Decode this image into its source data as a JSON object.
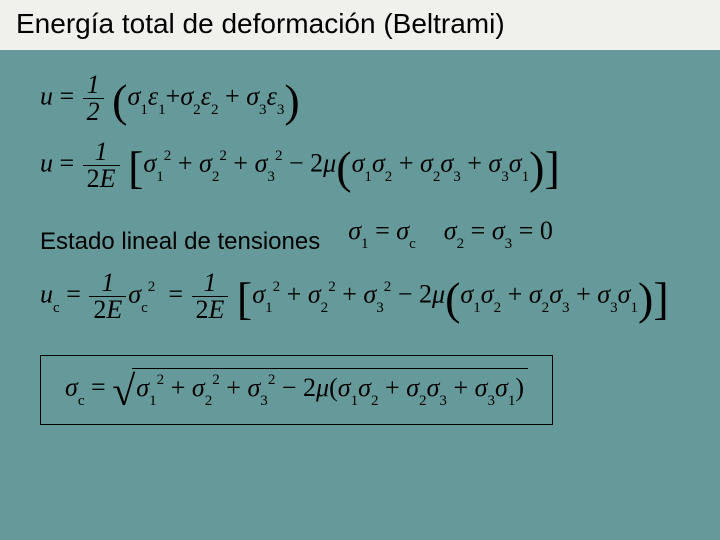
{
  "slide": {
    "title": "Energía total de deformación (Beltrami)",
    "subtitle": "Estado lineal de tensiones",
    "background_color": "#669999",
    "titlebar_color": "#f0f0ec",
    "title_fontsize": 28,
    "subtitle_fontsize": 24,
    "eq_fontsize": 26,
    "symbols": {
      "u": "u",
      "u_c": "u",
      "sigma": "σ",
      "epsilon": "ε",
      "mu": "μ",
      "E": "E",
      "eq": "=",
      "plus": "+",
      "minus": "−",
      "one": "1",
      "two": "2",
      "zero": "0",
      "sq": "2"
    },
    "sub": {
      "1": "1",
      "2": "2",
      "3": "3",
      "c": "c"
    },
    "cond1_sigma1": "σ",
    "cond1_sigmac": "σ",
    "cond2a": "σ",
    "cond2b": "σ"
  }
}
